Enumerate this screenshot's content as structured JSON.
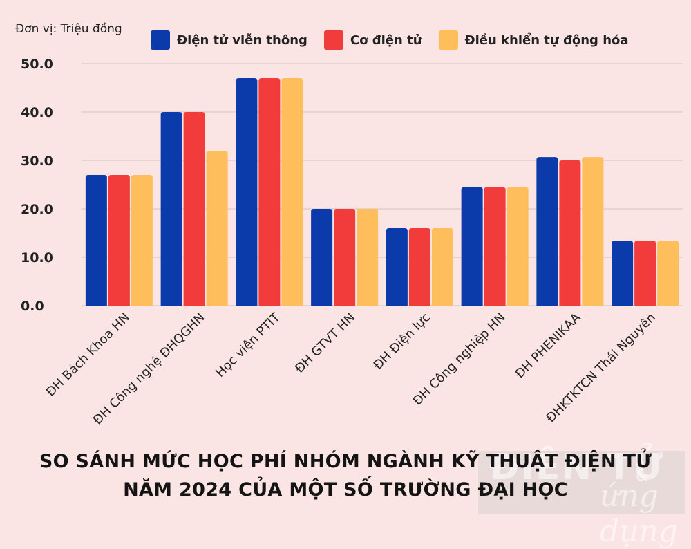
{
  "unit_label": "Đơn vị: Triệu đồng",
  "legend": [
    {
      "label": "Điện tử viễn thông",
      "color": "#0b3aaa"
    },
    {
      "label": "Cơ điện tử",
      "color": "#f23b3b"
    },
    {
      "label": "Điều khiển tự động hóa",
      "color": "#ffbe5c"
    }
  ],
  "title_line1": "SO SÁNH MỨC HỌC PHÍ NHÓM NGÀNH KỸ THUẬT ĐIỆN TỬ",
  "title_line2": "NĂM 2024 CỦA MỘT SỐ TRƯỜNG ĐẠI HỌC",
  "watermark": {
    "line1": "ĐIỆN TỬ",
    "amp": "&",
    "line2": "ứng dụng"
  },
  "chart_data": {
    "type": "bar",
    "title": "SO SÁNH MỨC HỌC PHÍ NHÓM NGÀNH KỸ THUẬT ĐIỆN TỬ NĂM 2024 CỦA MỘT SỐ TRƯỜNG ĐẠI HỌC",
    "ylabel": "Đơn vị: Triệu đồng",
    "xlabel": "",
    "ylim": [
      0,
      50
    ],
    "yticks": [
      "0.0",
      "10.0",
      "20.0",
      "30.0",
      "40.0",
      "50.0"
    ],
    "grid": true,
    "legend_position": "top",
    "categories": [
      "ĐH Bách Khoa HN",
      "ĐH Công nghệ ĐHQGHN",
      "Học viện PTIT",
      "ĐH GTVT HN",
      "ĐH Điện lực",
      "ĐH Công nghiệp HN",
      "ĐH PHENIKAA",
      "ĐHKTKTCN Thái Nguyên"
    ],
    "series": [
      {
        "name": "Điện tử viễn thông",
        "color": "#0b3aaa",
        "values": [
          27,
          40,
          47,
          20,
          16,
          24.5,
          30.7,
          13.4
        ]
      },
      {
        "name": "Cơ điện tử",
        "color": "#f23b3b",
        "values": [
          27,
          40,
          47,
          20,
          16,
          24.5,
          30,
          13.4
        ]
      },
      {
        "name": "Điều khiển tự động hóa",
        "color": "#ffbe5c",
        "values": [
          27,
          32,
          47,
          20,
          16,
          24.5,
          30.7,
          13.4
        ]
      }
    ]
  }
}
